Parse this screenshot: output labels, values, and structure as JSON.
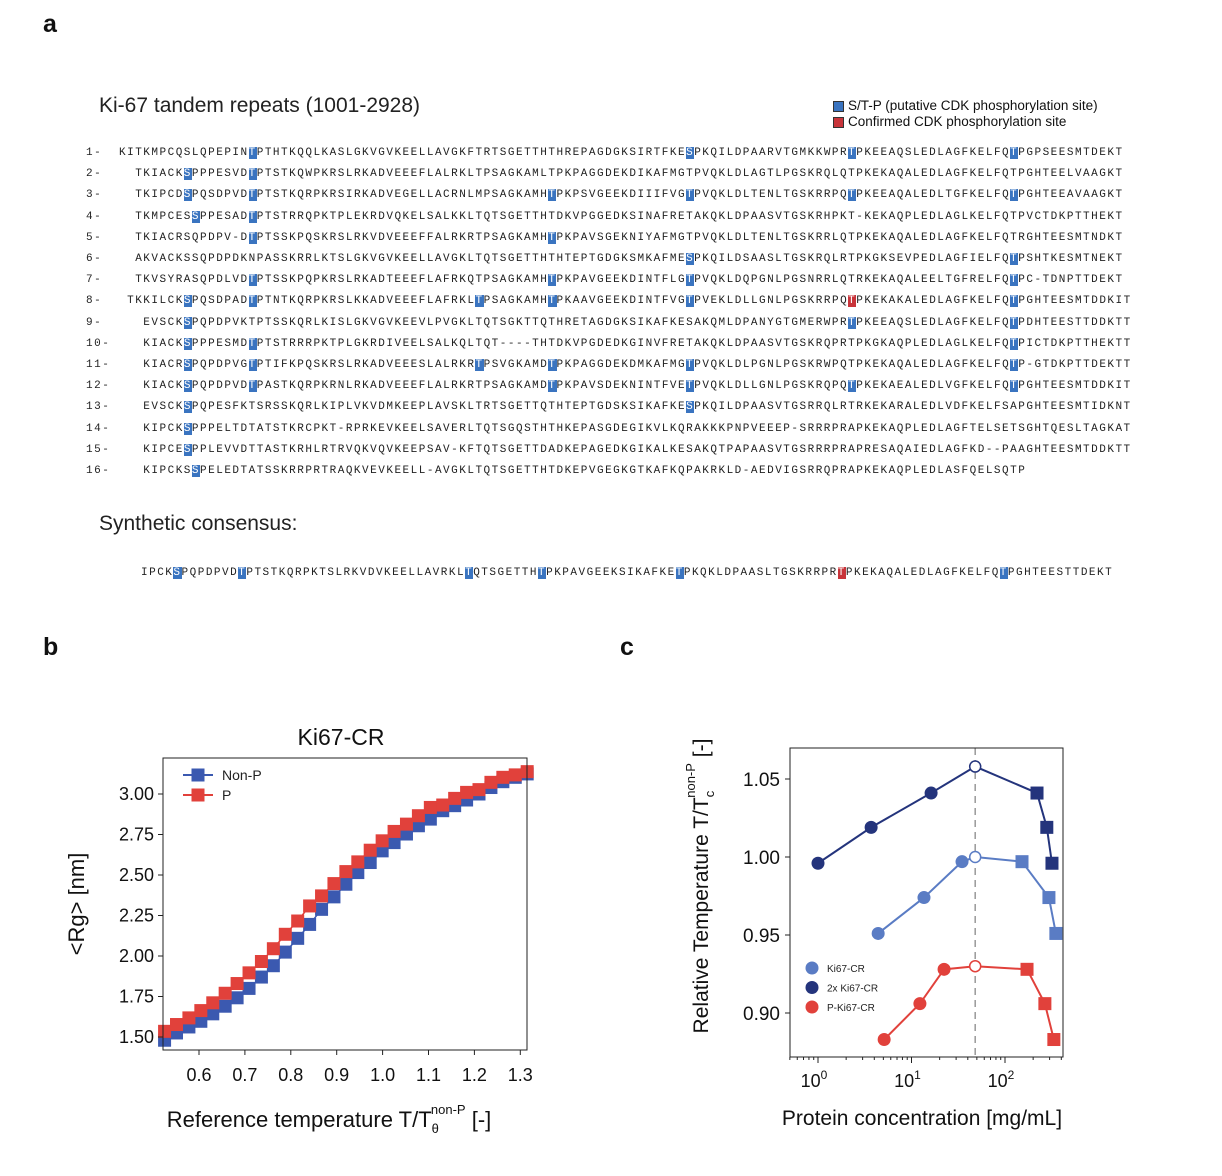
{
  "panel_labels": {
    "a": "a",
    "b": "b",
    "c": "c"
  },
  "panel_a": {
    "title": "Ki-67 tandem repeats (1001-2928)",
    "legend": [
      {
        "label": "S/T-P (putative CDK phosphorylation site)",
        "color": "#3a74c0"
      },
      {
        "label": "Confirmed CDK phosphorylation site",
        "color": "#c8343a"
      }
    ],
    "repeats": [
      {
        "label": "1-",
        "segments": [
          "KITKMPCQSLQPEPIN",
          {
            "site": "T",
            "kind": "putative"
          },
          "PTHTKQQLKASLGKVGVKEELLAVGKFTRTSGETTHTHREPAGDGKSIRTFKE",
          {
            "site": "S",
            "kind": "putative"
          },
          "PKQILDPAARVTGMKKWPR",
          {
            "site": "T",
            "kind": "putative"
          },
          "PKEEAQSLEDLAGFKELFQ",
          {
            "site": "T",
            "kind": "putative"
          },
          "PGPSEESMTDEKT"
        ]
      },
      {
        "label": "2-",
        "segments": [
          "TKIACK",
          {
            "site": "S",
            "kind": "putative"
          },
          "PPPESVD",
          {
            "site": "T",
            "kind": "putative"
          },
          "PTSTKQWPKRSLRKADVEEEFLALRKLTPSAGKAMLTPKPAGGDEKDIKAFMGTPVQKLDLAGTLPGSKRQLQTPKEKAQALEDLAGFKELFQTPGHTEELVAAGKT"
        ]
      },
      {
        "label": "3-",
        "segments": [
          "TKIPCD",
          {
            "site": "S",
            "kind": "putative"
          },
          "PQSDPVD",
          {
            "site": "T",
            "kind": "putative"
          },
          "PTSTKQRPKRSIRKADVEGELLACRNLMPSAGKAMH",
          {
            "site": "T",
            "kind": "putative"
          },
          "PKPSVGEEKDIIIFVG",
          {
            "site": "T",
            "kind": "putative"
          },
          "PVQKLDLTENLTGSKRRPQ",
          {
            "site": "T",
            "kind": "putative"
          },
          "PKEEAQALEDLTGFKELFQ",
          {
            "site": "T",
            "kind": "putative"
          },
          "PGHTEEAVAAGKT"
        ]
      },
      {
        "label": "4-",
        "segments": [
          "TKMPCES",
          {
            "site": "S",
            "kind": "putative"
          },
          "PPESAD",
          {
            "site": "T",
            "kind": "putative"
          },
          "PTSTRRQPKTPLEKRDVQKELSALKKLTQTSGETTHTDKVPGGEDKSINAFRETAKQKLDPAASVTGSKRHPKT-KEKAQPLEDLAGLKELFQTPVCTDKPTTHEKT"
        ]
      },
      {
        "label": "5-",
        "segments": [
          "TKIACRSQPDPV-D",
          {
            "site": "T",
            "kind": "putative"
          },
          "PTSSKPQSKRSLRKVDVEEEFFALRKRTPSAGKAMH",
          {
            "site": "T",
            "kind": "putative"
          },
          "PKPAVSGEKNIYAFMGTPVQKLDLTENLTGSKRRLQTPKEKAQALEDLAGFKELFQTRGHTEESMTNDKT"
        ]
      },
      {
        "label": "6-",
        "segments": [
          "AKVACKSSQPDPDKNPASSKRRLKTSLGKVGVKEELLAVGKLTQTSGETTHTHTEPTGDGKSMKAFME",
          {
            "site": "S",
            "kind": "putative"
          },
          "PKQILDSAASLTGSKRQLRTPKGKSEVPEDLAGFIELFQ",
          {
            "site": "T",
            "kind": "putative"
          },
          "PSHTKESMTNEKT"
        ]
      },
      {
        "label": "7-",
        "segments": [
          "TKVSYRASQPDLVD",
          {
            "site": "T",
            "kind": "putative"
          },
          "PTSSKPQPKRSLRKADTEEEFLAFRKQTPSAGKAMH",
          {
            "site": "T",
            "kind": "putative"
          },
          "PKPAVGEEKDINTFLG",
          {
            "site": "T",
            "kind": "putative"
          },
          "PVQKLDQPGNLPGSNRRLQTRKEKAQALEELTGFRELFQ",
          {
            "site": "T",
            "kind": "putative"
          },
          "PC-TDNPTTDEKT"
        ]
      },
      {
        "label": "8-",
        "segments": [
          "TKKILCK",
          {
            "site": "S",
            "kind": "putative"
          },
          "PQSDPAD",
          {
            "site": "T",
            "kind": "putative"
          },
          "PTNTKQRPKRSLKKADVEEEFLAFRKL",
          {
            "site": "T",
            "kind": "putative"
          },
          "PSAGKAMH",
          {
            "site": "T",
            "kind": "putative"
          },
          "PKAAVGEEKDINTFVG",
          {
            "site": "T",
            "kind": "putative"
          },
          "PVEKLDLLGNLPGSKRRPQ",
          {
            "site": "T",
            "kind": "confirmed"
          },
          "PKEKAKALEDLAGFKELFQ",
          {
            "site": "T",
            "kind": "putative"
          },
          "PGHTEESMTDDKIT"
        ]
      },
      {
        "label": "9-",
        "segments": [
          "EVSCK",
          {
            "site": "S",
            "kind": "putative"
          },
          "PQPDPVKTPTSSKQRLKISLGKVGVKEEVLPVGKLTQTSGKTTQTHRETAGDGKSIKAFKESAKQMLDPANYGTGMERWPR",
          {
            "site": "T",
            "kind": "putative"
          },
          "PKEEAQSLEDLAGFKELFQ",
          {
            "site": "T",
            "kind": "putative"
          },
          "PDHTEESTTDDKTT"
        ]
      },
      {
        "label": "10-",
        "segments": [
          "KIACK",
          {
            "site": "S",
            "kind": "putative"
          },
          "PPPESMD",
          {
            "site": "T",
            "kind": "putative"
          },
          "PTSTRRRPKTPLGKRDIVEELSALKQLTQT----THTDKVPGDEDKGINVFRETAKQKLDPAASVTGSKRQPRTPKGKAQPLEDLAGLKELFQ",
          {
            "site": "T",
            "kind": "putative"
          },
          "PICTDKPTTHEKTT"
        ]
      },
      {
        "label": "11-",
        "segments": [
          "KIACR",
          {
            "site": "S",
            "kind": "putative"
          },
          "PQPDPVG",
          {
            "site": "T",
            "kind": "putative"
          },
          "PTIFKPQSKRSLRKADVEEESLALRKR",
          {
            "site": "T",
            "kind": "putative"
          },
          "PSVGKAMD",
          {
            "site": "T",
            "kind": "putative"
          },
          "PKPAGGDEKDMKAFMG",
          {
            "site": "T",
            "kind": "putative"
          },
          "PVQKLDLPGNLPGSKRWPQTPKEKAQALEDLAGFKELFQ",
          {
            "site": "T",
            "kind": "putative"
          },
          "P-GTDKPTTDEKTT"
        ]
      },
      {
        "label": "12-",
        "segments": [
          "KIACK",
          {
            "site": "S",
            "kind": "putative"
          },
          "PQPDPVD",
          {
            "site": "T",
            "kind": "putative"
          },
          "PASTKQRPKRNLRKADVEEEFLALRKRTPSAGKAMD",
          {
            "site": "T",
            "kind": "putative"
          },
          "PKPAVSDEKNINTFVE",
          {
            "site": "T",
            "kind": "putative"
          },
          "PVQKLDLLGNLPGSKRQPQ",
          {
            "site": "T",
            "kind": "putative"
          },
          "PKEKAEALEDLVGFKELFQ",
          {
            "site": "T",
            "kind": "putative"
          },
          "PGHTEESMTDDKIT"
        ]
      },
      {
        "label": "13-",
        "segments": [
          "EVSCK",
          {
            "site": "S",
            "kind": "putative"
          },
          "PQPESFKTSRSSKQRLKIPLVKVDMKEEPLAVSKLTRTSGETTQTHTEPTGDSKSIKAFKE",
          {
            "site": "S",
            "kind": "putative"
          },
          "PKQILDPAASVTGSRRQLRTRKEKARALEDLVDFKELFSAPGHTEESMTIDKNT"
        ]
      },
      {
        "label": "14-",
        "segments": [
          "KIPCK",
          {
            "site": "S",
            "kind": "putative"
          },
          "PPPELTDTATSTKRCPKT-RPRKEVKEELSAVERLTQTSGQSTHTHKEPASGDEGIKVLKQRAKKKPNPVEEEP-SRRRPRAPKEKAQPLEDLAGFTELSETSGHTQESLTAGKAT"
        ]
      },
      {
        "label": "15-",
        "segments": [
          "KIPCE",
          {
            "site": "S",
            "kind": "putative"
          },
          "PPLEVVDTTASTKRHLRTRVQKVQVKEEPSAV-KFTQTSGETTDADKEPAGEDKGIKALKESAKQTPAPAASVTGSRRRPRAPRESAQAIEDLAGFKD--PAAGHTEESMTDDKTT"
        ]
      },
      {
        "label": "16-",
        "segments": [
          "KIPCKS",
          {
            "site": "S",
            "kind": "putative"
          },
          "PELEDTATSSKRRPRTRAQKVEVKEELL-AVGKLTQTSGETTHTDKEPVGEGKGTKAFKQPAKRKLD-AEDVIGSRRQPRAPKEKAQPLEDLASFQELSQTP"
        ]
      }
    ],
    "consensus_title": "Synthetic consensus:",
    "consensus": {
      "segments": [
        "IPCK",
        {
          "site": "S",
          "kind": "putative"
        },
        "PQPDPVD",
        {
          "site": "T",
          "kind": "putative"
        },
        "PTSTKQRPKTSLRKVDVKEELLAVRKL",
        {
          "site": "T",
          "kind": "putative"
        },
        "QTSGETTH",
        {
          "site": "T",
          "kind": "putative"
        },
        "PKPAVGEEKSIKAFKE",
        {
          "site": "T",
          "kind": "putative"
        },
        "PKQKLDPAASLTGSKRRPR",
        {
          "site": "T",
          "kind": "confirmed"
        },
        "PKEKAQALEDLAGFKELFQ",
        {
          "site": "T",
          "kind": "putative"
        },
        "PGHTEESTTDEKT"
      ]
    }
  },
  "chart_data": [
    {
      "type": "line",
      "title": "Ki67-CR",
      "xlabel": "Reference temperature T/Tθnon-P [-]",
      "xlabel_parts": {
        "main": "Reference temperature T/T",
        "sub": "θ",
        "sup": "non-P",
        "unit": " [-]"
      },
      "ylabel": "<Rg> [nm]",
      "xlim": [
        0.522,
        1.315
      ],
      "ylim": [
        1.42,
        3.22
      ],
      "xticks": [
        "0.6",
        "0.7",
        "0.8",
        "0.9",
        "1.0",
        "1.1",
        "1.2",
        "1.3"
      ],
      "yticks": [
        "1.50",
        "1.75",
        "2.00",
        "2.25",
        "2.50",
        "2.75",
        "3.00"
      ],
      "grid": false,
      "legend_position": "top-left",
      "x": [
        0.525,
        0.551,
        0.578,
        0.604,
        0.63,
        0.657,
        0.683,
        0.709,
        0.736,
        0.762,
        0.788,
        0.815,
        0.841,
        0.867,
        0.894,
        0.92,
        0.946,
        0.973,
        0.999,
        1.025,
        1.052,
        1.078,
        1.104,
        1.131,
        1.157,
        1.183,
        1.21,
        1.236,
        1.262,
        1.289,
        1.315
      ],
      "series": [
        {
          "name": "Non-P",
          "color": "#3b59b0",
          "marker": "square",
          "values": [
            1.48,
            1.525,
            1.562,
            1.597,
            1.643,
            1.69,
            1.742,
            1.8,
            1.87,
            1.94,
            2.024,
            2.109,
            2.195,
            2.288,
            2.365,
            2.443,
            2.515,
            2.577,
            2.649,
            2.7,
            2.753,
            2.804,
            2.845,
            2.897,
            2.928,
            2.963,
            3.0,
            3.04,
            3.076,
            3.103,
            3.124
          ]
        },
        {
          "name": "P",
          "color": "#e1413b",
          "marker": "square",
          "values": [
            1.535,
            1.577,
            1.618,
            1.663,
            1.711,
            1.77,
            1.83,
            1.896,
            1.966,
            2.045,
            2.134,
            2.216,
            2.309,
            2.371,
            2.447,
            2.521,
            2.581,
            2.653,
            2.711,
            2.769,
            2.814,
            2.866,
            2.917,
            2.932,
            2.973,
            3.01,
            3.027,
            3.072,
            3.103,
            3.118,
            3.138
          ]
        }
      ]
    },
    {
      "type": "line",
      "title": "",
      "xlabel": "Protein concentration [mg/mL]",
      "ylabel": "Relative Temperature T/Tcnon-P [-]",
      "ylabel_parts": {
        "main": "Relative Temperature T/T",
        "sub": "c",
        "sup": "non-P",
        "unit": " [-]"
      },
      "xscale": "log",
      "xlim": [
        0.5,
        420
      ],
      "ylim": [
        0.871,
        1.07
      ],
      "xticks": [
        {
          "base": "10",
          "exp": "0"
        },
        {
          "base": "10",
          "exp": "1"
        },
        {
          "base": "10",
          "exp": "2"
        }
      ],
      "yticks": [
        "0.90",
        "0.95",
        "1.00",
        "1.05"
      ],
      "grid": false,
      "legend_position": "bottom-left",
      "reference_line": {
        "x": 48,
        "style": "dashed",
        "color": "#999999"
      },
      "series": [
        {
          "name": "Ki67-CR",
          "color": "#5a7cc4",
          "x": [
            4.4,
            13.6,
            34.7,
            48,
            152,
            295,
            350
          ],
          "y": [
            0.951,
            0.974,
            0.997,
            1.0,
            0.997,
            0.974,
            0.951
          ],
          "markers": [
            "circle",
            "circle",
            "circle",
            "open-circle",
            "square",
            "square",
            "square"
          ]
        },
        {
          "name": "2x Ki67-CR",
          "color": "#24347c",
          "x": [
            1.0,
            3.7,
            16.2,
            48,
            220,
            280,
            318
          ],
          "y": [
            0.996,
            1.019,
            1.041,
            1.058,
            1.041,
            1.019,
            0.996
          ],
          "markers": [
            "circle",
            "circle",
            "circle",
            "open-circle",
            "square",
            "square",
            "square"
          ]
        },
        {
          "name": "P-Ki67-CR",
          "color": "#e1413b",
          "x": [
            5.1,
            12.3,
            22.3,
            48,
            172,
            267,
            333
          ],
          "y": [
            0.883,
            0.906,
            0.928,
            0.93,
            0.928,
            0.906,
            0.883
          ],
          "markers": [
            "circle",
            "circle",
            "circle",
            "open-circle",
            "square",
            "square",
            "square"
          ]
        }
      ]
    }
  ]
}
